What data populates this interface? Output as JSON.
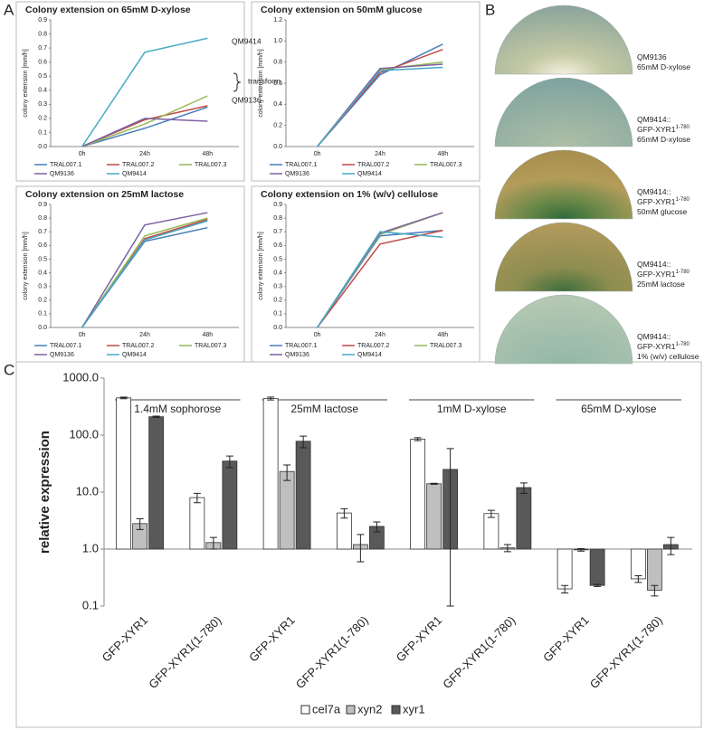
{
  "panel_labels": [
    "A",
    "B",
    "C"
  ],
  "chart_data": [
    {
      "type": "line",
      "title": "Colony extension on 65mM D-xylose",
      "ylabel": "colony extension [mm/h]",
      "categories": [
        "0h",
        "24h",
        "48h"
      ],
      "ylim": [
        0,
        0.9
      ],
      "yticks": [
        {
          "value": 0,
          "label": "0.0"
        },
        {
          "value": 0.1,
          "label": "0.1"
        },
        {
          "value": 0.2,
          "label": "0.2"
        },
        {
          "value": 0.3,
          "label": "0.3"
        },
        {
          "value": 0.4,
          "label": "0.4"
        },
        {
          "value": 0.5,
          "label": "0.5"
        },
        {
          "value": 0.6,
          "label": "0.6"
        },
        {
          "value": 0.7,
          "label": "0.7"
        },
        {
          "value": 0.8,
          "label": "0.8"
        },
        {
          "value": 0.9,
          "label": "0.9"
        }
      ],
      "annotations": [
        "QM9414",
        "transform.",
        "QM9136"
      ],
      "series": [
        {
          "name": "TRAL007.1",
          "color": "#4a7ebb",
          "values": [
            0,
            0.13,
            0.28
          ]
        },
        {
          "name": "TRAL007.2",
          "color": "#be4b48",
          "values": [
            0,
            0.19,
            0.29
          ]
        },
        {
          "name": "TRAL007.3",
          "color": "#98b954",
          "values": [
            0,
            0.16,
            0.36
          ]
        },
        {
          "name": "QM9136",
          "color": "#7d60a0",
          "values": [
            0,
            0.2,
            0.18
          ]
        },
        {
          "name": "QM9414",
          "color": "#46aac5",
          "values": [
            0,
            0.67,
            0.77
          ]
        }
      ]
    },
    {
      "type": "line",
      "title": "Colony extension on 50mM glucose",
      "ylabel": "colony extension [mm/h]",
      "categories": [
        "0h",
        "24h",
        "48h"
      ],
      "ylim": [
        0,
        1.2
      ],
      "yticks": [
        {
          "value": 0,
          "label": "0.0"
        },
        {
          "value": 0.2,
          "label": "0.2"
        },
        {
          "value": 0.4,
          "label": "0.4"
        },
        {
          "value": 0.6,
          "label": "0.6"
        },
        {
          "value": 0.8,
          "label": "0.8"
        },
        {
          "value": 1,
          "label": "1.0"
        },
        {
          "value": 1.2,
          "label": "1.2"
        }
      ],
      "series": [
        {
          "name": "TRAL007.1",
          "color": "#4a7ebb",
          "values": [
            0,
            0.68,
            0.97
          ]
        },
        {
          "name": "TRAL007.2",
          "color": "#be4b48",
          "values": [
            0,
            0.7,
            0.92
          ]
        },
        {
          "name": "TRAL007.3",
          "color": "#98b954",
          "values": [
            0,
            0.73,
            0.8
          ]
        },
        {
          "name": "QM9136",
          "color": "#7d60a0",
          "values": [
            0,
            0.74,
            0.78
          ]
        },
        {
          "name": "QM9414",
          "color": "#46aac5",
          "values": [
            0,
            0.72,
            0.75
          ]
        }
      ]
    },
    {
      "type": "line",
      "title": "Colony extension on 25mM lactose",
      "ylabel": "colony extension [mm/h]",
      "categories": [
        "0h",
        "24h",
        "48h"
      ],
      "ylim": [
        0,
        0.9
      ],
      "yticks": [
        {
          "value": 0,
          "label": "0.0"
        },
        {
          "value": 0.1,
          "label": "0.1"
        },
        {
          "value": 0.2,
          "label": "0.2"
        },
        {
          "value": 0.3,
          "label": "0.3"
        },
        {
          "value": 0.4,
          "label": "0.4"
        },
        {
          "value": 0.5,
          "label": "0.5"
        },
        {
          "value": 0.6,
          "label": "0.6"
        },
        {
          "value": 0.7,
          "label": "0.7"
        },
        {
          "value": 0.8,
          "label": "0.8"
        },
        {
          "value": 0.9,
          "label": "0.9"
        }
      ],
      "series": [
        {
          "name": "TRAL007.1",
          "color": "#4a7ebb",
          "values": [
            0,
            0.63,
            0.73
          ]
        },
        {
          "name": "TRAL007.2",
          "color": "#be4b48",
          "values": [
            0,
            0.65,
            0.79
          ]
        },
        {
          "name": "TRAL007.3",
          "color": "#98b954",
          "values": [
            0,
            0.67,
            0.8
          ]
        },
        {
          "name": "QM9136",
          "color": "#7d60a0",
          "values": [
            0,
            0.75,
            0.84
          ]
        },
        {
          "name": "QM9414",
          "color": "#46aac5",
          "values": [
            0,
            0.64,
            0.78
          ]
        }
      ]
    },
    {
      "type": "line",
      "title": "Colony extension on 1% (w/v) cellulose",
      "ylabel": "colony extension [mm/h]",
      "categories": [
        "0h",
        "24h",
        "48h"
      ],
      "ylim": [
        0,
        0.9
      ],
      "yticks": [
        {
          "value": 0,
          "label": "0.0"
        },
        {
          "value": 0.1,
          "label": "0.1"
        },
        {
          "value": 0.2,
          "label": "0.2"
        },
        {
          "value": 0.3,
          "label": "0.3"
        },
        {
          "value": 0.4,
          "label": "0.4"
        },
        {
          "value": 0.5,
          "label": "0.5"
        },
        {
          "value": 0.6,
          "label": "0.6"
        },
        {
          "value": 0.7,
          "label": "0.7"
        },
        {
          "value": 0.8,
          "label": "0.8"
        },
        {
          "value": 0.9,
          "label": "0.9"
        }
      ],
      "series": [
        {
          "name": "TRAL007.1",
          "color": "#4a7ebb",
          "values": [
            0,
            0.67,
            0.71
          ]
        },
        {
          "name": "TRAL007.2",
          "color": "#be4b48",
          "values": [
            0,
            0.61,
            0.71
          ]
        },
        {
          "name": "TRAL007.3",
          "color": "#98b954",
          "values": [
            0,
            0.68,
            0.84
          ]
        },
        {
          "name": "QM9136",
          "color": "#7d60a0",
          "values": [
            0,
            0.69,
            0.84
          ]
        },
        {
          "name": "QM9414",
          "color": "#46aac5",
          "values": [
            0,
            0.7,
            0.66
          ]
        }
      ]
    },
    {
      "type": "bar",
      "ylabel": "relative expression",
      "log_scale": true,
      "x_axis_crosses": 1,
      "groups": [
        "1.4mM sophorose",
        "25mM lactose",
        "1mM D-xylose",
        "65mM D-xylose"
      ],
      "categories": [
        "GFP-XYR1",
        "GFP-XYR1(1-780)",
        "GFP-XYR1",
        "GFP-XYR1(1-780)",
        "GFP-XYR1",
        "GFP-XYR1(1-780)",
        "GFP-XYR1",
        "GFP-XYR1(1-780)"
      ],
      "ylim": [
        0.1,
        1000
      ],
      "yticks": [
        {
          "value": 0.1,
          "label": "0.1"
        },
        {
          "value": 1,
          "label": "1.0"
        },
        {
          "value": 10,
          "label": "10.0"
        },
        {
          "value": 100,
          "label": "100.0"
        },
        {
          "value": 1000,
          "label": "1000.0"
        }
      ],
      "series": [
        {
          "name": "cel7a",
          "color": "#ffffff",
          "values": [
            450,
            8,
            440,
            4.3,
            85,
            4.2,
            0.2,
            0.3
          ],
          "errors": [
            15,
            1.5,
            25,
            0.8,
            5,
            0.6,
            0.03,
            0.04
          ]
        },
        {
          "name": "xyn2",
          "color": "#bfbfbf",
          "values": [
            2.8,
            1.3,
            23,
            1.2,
            14,
            1.05,
            0.97,
            0.19
          ],
          "errors": [
            0.6,
            0.3,
            7,
            0.6,
            0.3,
            0.15,
            0.05,
            0.04
          ]
        },
        {
          "name": "xyr1",
          "color": "#595959",
          "values": [
            210,
            35,
            78,
            2.5,
            25,
            12,
            0.23,
            1.2
          ],
          "errors": [
            5,
            8,
            18,
            0.5,
            33,
            2.5,
            0.01,
            0.4
          ]
        }
      ]
    }
  ],
  "plates": [
    {
      "lines": [
        {
          "text": "QM9136"
        },
        {
          "text": "65mM D-xylose"
        }
      ]
    },
    {
      "lines": [
        {
          "text": "QM9414::"
        },
        {
          "text": "GFP-XYR1",
          "sup": "1-780"
        },
        {
          "text": "65mM D-xylose"
        }
      ]
    },
    {
      "lines": [
        {
          "text": "QM9414::"
        },
        {
          "text": "GFP-XYR1",
          "sup": "1-780"
        },
        {
          "text": "50mM glucose"
        }
      ]
    },
    {
      "lines": [
        {
          "text": "QM9414::"
        },
        {
          "text": "GFP-XYR1",
          "sup": "1-780"
        },
        {
          "text": "25mM lactose"
        }
      ]
    },
    {
      "lines": [
        {
          "text": "QM9414::"
        },
        {
          "text": "GFP-XYR1",
          "sup": "1-780"
        },
        {
          "text": "1% (w/v) cellulose"
        }
      ]
    }
  ]
}
